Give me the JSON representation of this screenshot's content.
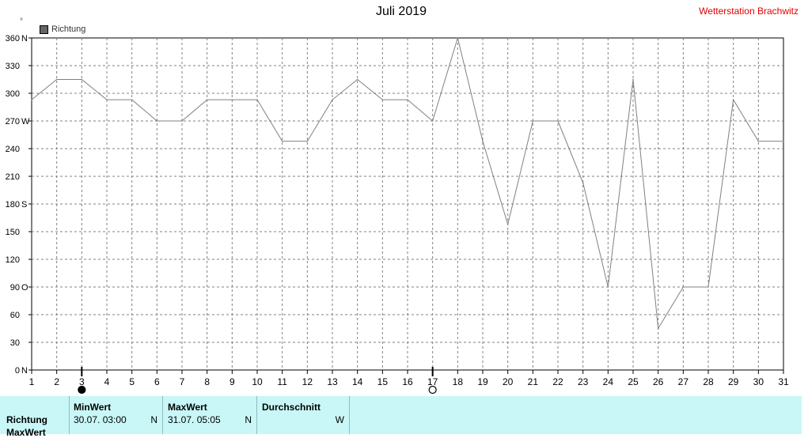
{
  "header": {
    "title": "Juli 2019",
    "station": "Wetterstation Brachwitz",
    "degree_symbol": "°"
  },
  "chart_data": {
    "type": "line",
    "title": "Juli 2019",
    "xlim": [
      1,
      31
    ],
    "ylim": [
      0,
      360
    ],
    "grid": true,
    "legend": "top-left",
    "x_ticks": [
      "1",
      "2",
      "3",
      "4",
      "5",
      "6",
      "7",
      "8",
      "9",
      "10",
      "11",
      "12",
      "13",
      "14",
      "15",
      "16",
      "17",
      "18",
      "19",
      "20",
      "21",
      "22",
      "23",
      "24",
      "25",
      "26",
      "27",
      "28",
      "29",
      "30",
      "31"
    ],
    "y_ticks": [
      {
        "value": 0,
        "label": "0",
        "dir": "N"
      },
      {
        "value": 30,
        "label": "30",
        "dir": ""
      },
      {
        "value": 60,
        "label": "60",
        "dir": ""
      },
      {
        "value": 90,
        "label": "90",
        "dir": "O"
      },
      {
        "value": 120,
        "label": "120",
        "dir": ""
      },
      {
        "value": 150,
        "label": "150",
        "dir": ""
      },
      {
        "value": 180,
        "label": "180",
        "dir": "S"
      },
      {
        "value": 210,
        "label": "210",
        "dir": ""
      },
      {
        "value": 240,
        "label": "240",
        "dir": ""
      },
      {
        "value": 270,
        "label": "270",
        "dir": "W"
      },
      {
        "value": 300,
        "label": "300",
        "dir": ""
      },
      {
        "value": 330,
        "label": "330",
        "dir": ""
      },
      {
        "value": 360,
        "label": "360",
        "dir": "N"
      }
    ],
    "series": [
      {
        "name": "Richtung",
        "color": "#808080",
        "x": [
          1,
          2,
          3,
          4,
          5,
          6,
          7,
          8,
          9,
          10,
          11,
          12,
          13,
          14,
          15,
          16,
          17,
          18,
          19,
          20,
          21,
          22,
          23,
          24,
          25,
          26,
          27,
          28,
          29,
          30,
          31
        ],
        "values": [
          293,
          315,
          315,
          293,
          293,
          270,
          270,
          293,
          293,
          293,
          248,
          248,
          293,
          315,
          293,
          293,
          270,
          360,
          248,
          158,
          270,
          270,
          203,
          90,
          315,
          45,
          90,
          90,
          293,
          248,
          248
        ]
      }
    ],
    "moon_phases": [
      {
        "day": 3,
        "phase": "new-moon"
      },
      {
        "day": 17,
        "phase": "full-moon"
      }
    ]
  },
  "summary": {
    "row_label": "Richtung",
    "row_label_2": "MaxWert",
    "min": {
      "header": "MinWert",
      "when": "30.07.  03:00",
      "value": "N"
    },
    "max": {
      "header": "MaxWert",
      "when": "31.07.  05:05",
      "value": "N"
    },
    "avg": {
      "header": "Durchschnitt",
      "value": "W"
    }
  }
}
